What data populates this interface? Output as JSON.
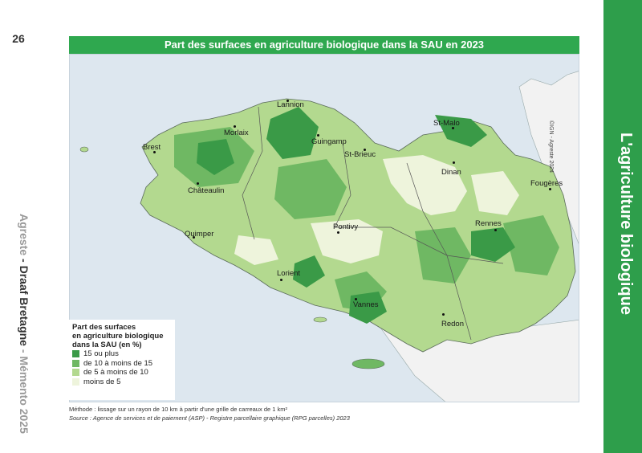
{
  "page": {
    "number": "26",
    "publisher_brand": "Agreste",
    "publisher_separator": " - ",
    "publisher_org": "Draaf Bretagne",
    "publication": "Mémento 2025",
    "section_title": "L'agriculture biologique"
  },
  "map": {
    "title": "Part des surfaces en agriculture biologique dans la SAU en 2023",
    "credit": "©IGN - Agreste 2024",
    "cities": [
      {
        "name": "Lannion"
      },
      {
        "name": "Morlaix"
      },
      {
        "name": "Guingamp"
      },
      {
        "name": "St-Malo"
      },
      {
        "name": "Brest"
      },
      {
        "name": "St-Brieuc"
      },
      {
        "name": "Dinan"
      },
      {
        "name": "Châteaulin"
      },
      {
        "name": "Fougères"
      },
      {
        "name": "Rennes"
      },
      {
        "name": "Pontivy"
      },
      {
        "name": "Quimper"
      },
      {
        "name": "Lorient"
      },
      {
        "name": "Vannes"
      },
      {
        "name": "Redon"
      }
    ],
    "legend": {
      "title_line1": "Part des surfaces",
      "title_line2": "en agriculture biologique",
      "title_line3": "dans la SAU (en %)",
      "items": [
        {
          "label": "15 ou plus",
          "color": "#3a9a47"
        },
        {
          "label": "de 10 à moins de 15",
          "color": "#6fb863"
        },
        {
          "label": "de 5 à moins de 10",
          "color": "#b3d98f"
        },
        {
          "label": "moins de 5",
          "color": "#eef4dc"
        }
      ]
    },
    "colors": {
      "sea": "#dde7ef",
      "land_outside": "#f2f2f2",
      "band": "#2fa84f"
    }
  },
  "footer": {
    "method": "Méthode : lissage sur un rayon de 10 km à partir d'une grille de carreaux de 1 km²",
    "source": "Source : Agence de services et de paiement (ASP) - Registre parcellaire graphique (RPG parcelles) 2023"
  }
}
